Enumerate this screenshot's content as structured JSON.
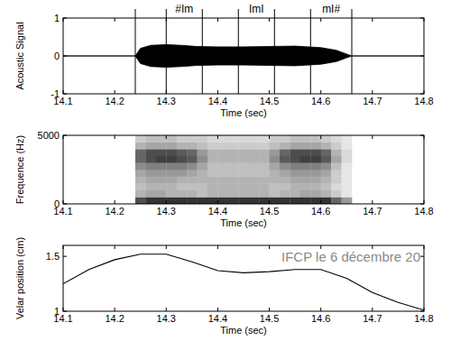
{
  "chart_data": [
    {
      "type": "area",
      "y_label": "Acoustic Signal",
      "x_label": "Time (sec)",
      "x": [
        14.1,
        14.24,
        14.25,
        14.27,
        14.3,
        14.33,
        14.36,
        14.4,
        14.45,
        14.5,
        14.55,
        14.6,
        14.63,
        14.65,
        14.66,
        14.8
      ],
      "series": [
        {
          "color": "#000000",
          "values": [
            0,
            0,
            0.2,
            0.28,
            0.3,
            0.28,
            0.25,
            0.24,
            0.24,
            0.25,
            0.26,
            0.22,
            0.15,
            0.05,
            0,
            0
          ]
        },
        {
          "color": "#000000",
          "values": [
            0,
            0,
            -0.2,
            -0.28,
            -0.3,
            -0.28,
            -0.25,
            -0.24,
            -0.24,
            -0.25,
            -0.26,
            -0.22,
            -0.15,
            -0.05,
            0,
            0
          ]
        }
      ],
      "vlines": [
        14.24,
        14.3,
        14.37,
        14.44,
        14.51,
        14.58,
        14.66
      ],
      "annotations": [
        {
          "text": "#Im",
          "x": 14.335
        },
        {
          "text": "ImI",
          "x": 14.475
        },
        {
          "text": "mI#",
          "x": 14.62
        }
      ],
      "xlim": [
        14.1,
        14.8
      ],
      "xticks": [
        14.1,
        14.2,
        14.3,
        14.4,
        14.5,
        14.6,
        14.7,
        14.8
      ],
      "ylim": [
        -1,
        1
      ],
      "yticks": [
        -1,
        0,
        1
      ]
    },
    {
      "type": "heatmap",
      "y_label": "Frequence (Hz)",
      "x_label": "Time (sec)",
      "x_bins": [
        14.24,
        14.26,
        14.28,
        14.3,
        14.32,
        14.34,
        14.36,
        14.38,
        14.4,
        14.42,
        14.44,
        14.46,
        14.48,
        14.5,
        14.52,
        14.54,
        14.56,
        14.58,
        14.6,
        14.62,
        14.64,
        14.66
      ],
      "y_bins": [
        0,
        500,
        1000,
        1500,
        2000,
        2500,
        3000,
        3500,
        4000,
        4500,
        5000
      ],
      "zlim": [
        0,
        1
      ],
      "cells": [
        [
          0.7,
          0.8,
          0.8,
          0.8,
          0.8,
          0.8,
          0.8,
          0.8,
          0.8,
          0.8,
          0.8,
          0.8,
          0.8,
          0.8,
          0.8,
          0.8,
          0.8,
          0.8,
          0.8,
          0.6,
          0.4
        ],
        [
          0.3,
          0.35,
          0.35,
          0.3,
          0.3,
          0.3,
          0.25,
          0.3,
          0.3,
          0.3,
          0.3,
          0.3,
          0.3,
          0.25,
          0.3,
          0.3,
          0.35,
          0.35,
          0.3,
          0.2,
          0.1
        ],
        [
          0.25,
          0.3,
          0.3,
          0.3,
          0.25,
          0.25,
          0.25,
          0.3,
          0.3,
          0.3,
          0.3,
          0.3,
          0.3,
          0.25,
          0.25,
          0.3,
          0.3,
          0.3,
          0.25,
          0.15,
          0.1
        ],
        [
          0.3,
          0.35,
          0.35,
          0.35,
          0.3,
          0.3,
          0.3,
          0.3,
          0.3,
          0.3,
          0.3,
          0.3,
          0.3,
          0.3,
          0.3,
          0.35,
          0.35,
          0.35,
          0.3,
          0.2,
          0.1
        ],
        [
          0.35,
          0.4,
          0.4,
          0.4,
          0.4,
          0.35,
          0.3,
          0.25,
          0.25,
          0.25,
          0.25,
          0.25,
          0.25,
          0.3,
          0.35,
          0.4,
          0.4,
          0.4,
          0.35,
          0.2,
          0.1
        ],
        [
          0.45,
          0.5,
          0.5,
          0.5,
          0.5,
          0.45,
          0.35,
          0.25,
          0.25,
          0.25,
          0.25,
          0.25,
          0.25,
          0.35,
          0.45,
          0.5,
          0.5,
          0.5,
          0.45,
          0.25,
          0.1
        ],
        [
          0.6,
          0.7,
          0.75,
          0.75,
          0.7,
          0.65,
          0.45,
          0.3,
          0.3,
          0.3,
          0.3,
          0.3,
          0.3,
          0.45,
          0.65,
          0.7,
          0.75,
          0.75,
          0.65,
          0.35,
          0.15
        ],
        [
          0.6,
          0.7,
          0.7,
          0.7,
          0.65,
          0.6,
          0.4,
          0.3,
          0.3,
          0.3,
          0.3,
          0.3,
          0.3,
          0.4,
          0.6,
          0.7,
          0.7,
          0.7,
          0.6,
          0.3,
          0.15
        ],
        [
          0.3,
          0.35,
          0.35,
          0.35,
          0.3,
          0.3,
          0.25,
          0.2,
          0.2,
          0.2,
          0.2,
          0.2,
          0.2,
          0.25,
          0.3,
          0.35,
          0.35,
          0.35,
          0.3,
          0.2,
          0.1
        ],
        [
          0.2,
          0.25,
          0.25,
          0.25,
          0.2,
          0.2,
          0.2,
          0.15,
          0.15,
          0.15,
          0.15,
          0.15,
          0.15,
          0.2,
          0.2,
          0.25,
          0.25,
          0.25,
          0.2,
          0.15,
          0.1
        ]
      ],
      "xlim": [
        14.1,
        14.8
      ],
      "xticks": [
        14.1,
        14.2,
        14.3,
        14.4,
        14.5,
        14.6,
        14.7,
        14.8
      ],
      "ylim": [
        0,
        5000
      ],
      "yticks": [
        0,
        5000
      ]
    },
    {
      "type": "line",
      "y_label": "Velar position (cm)",
      "x_label": "Time (sec)",
      "color": "#000000",
      "x": [
        14.1,
        14.15,
        14.2,
        14.25,
        14.3,
        14.35,
        14.4,
        14.45,
        14.5,
        14.55,
        14.6,
        14.65,
        14.7,
        14.75,
        14.8
      ],
      "values": [
        1.25,
        1.38,
        1.47,
        1.52,
        1.52,
        1.45,
        1.37,
        1.35,
        1.36,
        1.38,
        1.38,
        1.3,
        1.17,
        1.08,
        1.01
      ],
      "xlim": [
        14.1,
        14.8
      ],
      "xticks": [
        14.1,
        14.2,
        14.3,
        14.4,
        14.5,
        14.6,
        14.7,
        14.8
      ],
      "ylim": [
        1,
        1.6
      ],
      "yticks": [
        1,
        1.5
      ]
    }
  ],
  "watermark": "IFCP le 6 décembre 20"
}
